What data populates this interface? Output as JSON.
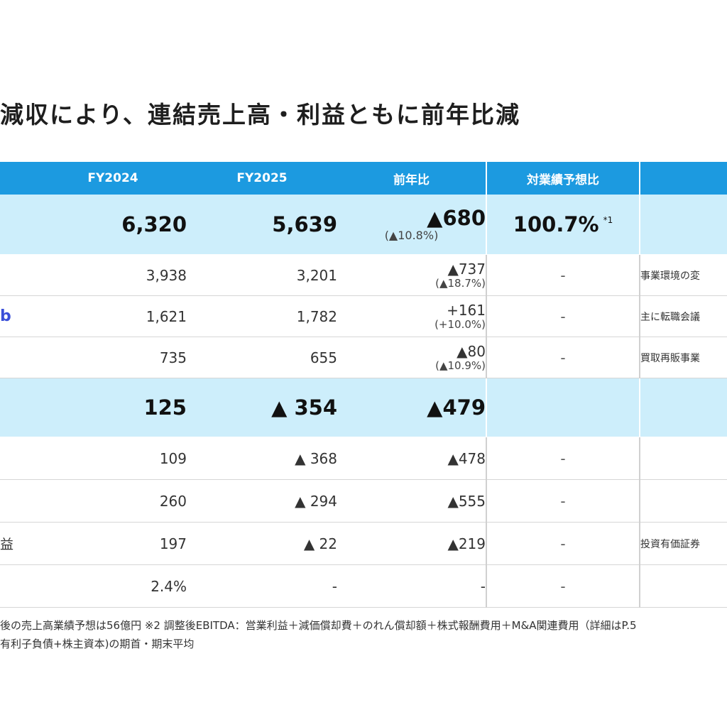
{
  "title": "減収により、連結売上高・利益ともに前年比減",
  "header": {
    "c0": "",
    "c1": "FY2024",
    "c2": "FY2025",
    "c3": "前年比",
    "c4": "対業績予想比",
    "c5": ""
  },
  "rows": [
    {
      "label": "",
      "fy2024": "6,320",
      "fy2025": "5,639",
      "yoy": "▲680",
      "yoy_pct": "(▲10.8%)",
      "vs_forecast": "100.7%",
      "note_mark": "*1",
      "comment": ""
    },
    {
      "label": "",
      "fy2024": "3,938",
      "fy2025": "3,201",
      "yoy": "▲737",
      "yoy_pct": "(▲18.7%)",
      "vs_forecast": "-",
      "comment": "事業環境の変"
    },
    {
      "label": "b",
      "fy2024": "1,621",
      "fy2025": "1,782",
      "yoy": "+161",
      "yoy_pct": "(+10.0%)",
      "vs_forecast": "-",
      "comment": "主に転職会議"
    },
    {
      "label": "",
      "fy2024": "735",
      "fy2025": "655",
      "yoy": "▲80",
      "yoy_pct": "(▲10.9%)",
      "vs_forecast": "-",
      "comment": "買取再販事業"
    },
    {
      "label": "",
      "fy2024": "125",
      "fy2025": "▲ 354",
      "yoy": "▲479",
      "yoy_pct": "",
      "vs_forecast": "",
      "comment": ""
    },
    {
      "label": "",
      "fy2024": "109",
      "fy2025": "▲ 368",
      "yoy": "▲478",
      "yoy_pct": "",
      "vs_forecast": "-",
      "comment": ""
    },
    {
      "label": "",
      "fy2024": "260",
      "fy2025": "▲ 294",
      "yoy": "▲555",
      "yoy_pct": "",
      "vs_forecast": "-",
      "comment": ""
    },
    {
      "label": "益",
      "fy2024": "197",
      "fy2025": "▲ 22",
      "yoy": "▲219",
      "yoy_pct": "",
      "vs_forecast": "-",
      "comment": "投資有価証券"
    },
    {
      "label": "",
      "fy2024": "2.4%",
      "fy2025": "-",
      "yoy": "-",
      "yoy_pct": "",
      "vs_forecast": "-",
      "comment": ""
    }
  ],
  "footnotes": [
    "後の売上高業績予想は56億円 ※2 調整後EBITDA：営業利益＋減価償却費＋のれん償却額＋株式報酬費用＋M&A関連費用（詳細はP.5",
    "有利子負債+株主資本)の期首・期末平均"
  ]
}
